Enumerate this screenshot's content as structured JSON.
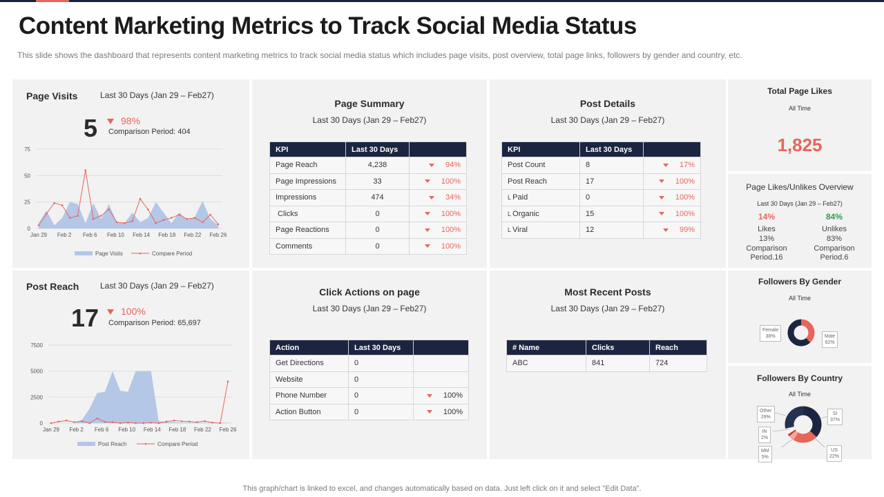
{
  "page": {
    "title": "Content Marketing Metrics to Track Social Media Status",
    "subtitle": "This slide shows the dashboard that represents content marketing metrics to track social media status which includes page visits, post overview,  total page links, followers by gender and country, etc.",
    "footer": "This graph/chart is linked to excel, and changes automatically based on data. Just left click on it and select \"Edit Data\"."
  },
  "colors": {
    "navy": "#1b2540",
    "accent": "#e8655a",
    "area": "#b4c7e7",
    "green": "#2e9e4f",
    "panel": "#f2f2f2"
  },
  "page_visits": {
    "title": "Page Visits",
    "period": "Last 30 Days (Jan 29 – Feb27)",
    "value": "5",
    "change": "98%",
    "comparison": "Comparison Period: 404"
  },
  "post_reach": {
    "title": "Post Reach",
    "period": "Last 30 Days (Jan 29 – Feb27)",
    "value": "17",
    "change": "100%",
    "comparison": "Comparison Period: 65,697"
  },
  "chart_data": [
    {
      "type": "area",
      "ylim": [
        0,
        75
      ],
      "yticks": [
        "0",
        "25",
        "50",
        "75"
      ],
      "xticks": [
        "Jan 29",
        "Feb 2",
        "Feb 6",
        "Feb 10",
        "Feb 14",
        "Feb 18",
        "Feb 22",
        "Feb 26"
      ],
      "series": [
        {
          "name": "Page Visits",
          "values": [
            5,
            17,
            3,
            10,
            25,
            23,
            5,
            24,
            9,
            23,
            6,
            5,
            15,
            6,
            10,
            25,
            15,
            5,
            15,
            8,
            11,
            26,
            9,
            3
          ]
        },
        {
          "name": "Compare Period",
          "values": [
            3,
            14,
            24,
            22,
            10,
            12,
            55,
            9,
            12,
            18,
            6,
            5,
            7,
            28,
            18,
            5,
            8,
            10,
            13,
            9,
            10,
            6,
            13,
            4
          ]
        }
      ]
    },
    {
      "type": "area",
      "ylim": [
        0,
        7500
      ],
      "yticks": [
        "0",
        "2500",
        "5000",
        "7500"
      ],
      "xticks": [
        "Jan 29",
        "Feb 2",
        "Feb 6",
        "Feb 10",
        "Feb 14",
        "Feb 18",
        "Feb 22",
        "Feb 26"
      ],
      "series": [
        {
          "name": "Post Reach",
          "values": [
            0,
            0,
            0,
            0,
            300,
            1400,
            2900,
            3000,
            5000,
            3100,
            3000,
            5000,
            5000,
            5000,
            200,
            100,
            100,
            50,
            50,
            50,
            50,
            50,
            50,
            50
          ]
        },
        {
          "name": "Compare Period",
          "values": [
            0,
            150,
            250,
            100,
            200,
            0,
            450,
            120,
            90,
            0,
            50,
            0,
            0,
            40,
            0,
            150,
            250,
            180,
            150,
            100,
            200,
            50,
            0,
            4000
          ]
        }
      ]
    }
  ],
  "page_summary": {
    "title": "Page Summary",
    "period": "Last 30 Days (Jan 29 – Feb27)",
    "headers": [
      "KPI",
      "Last 30 Days",
      ""
    ],
    "rows": [
      {
        "kpi": "Page Reach",
        "value": "4,238",
        "change": "94%"
      },
      {
        "kpi": "Page Impressions",
        "value": "33",
        "change": "100%"
      },
      {
        "kpi": "Impressions",
        "value": "474",
        "change": "34%"
      },
      {
        "kpi": " Clicks",
        "value": "0",
        "change": "100%"
      },
      {
        "kpi": "Page Reactions",
        "value": "0",
        "change": "100%"
      },
      {
        "kpi": "Comments",
        "value": "0",
        "change": "100%"
      }
    ]
  },
  "post_details": {
    "title": "Post Details",
    "period": "Last 30 Days (Jan 29 – Feb27)",
    "headers": [
      "KPI",
      "Last 30 Days",
      ""
    ],
    "rows": [
      {
        "kpi": "Post Count",
        "value": "8",
        "change": "17%"
      },
      {
        "kpi": "Post Reach",
        "value": "17",
        "change": "100%"
      },
      {
        "kpi": "Paid",
        "value": "0",
        "change": "100%"
      },
      {
        "kpi": "Organic",
        "value": "15",
        "change": "100%"
      },
      {
        "kpi": "Viral",
        "value": "12",
        "change": "99%"
      }
    ]
  },
  "click_actions": {
    "title": "Click Actions on page",
    "period": "Last 30 Days (Jan 29 – Feb27)",
    "headers": [
      "Action",
      "Last 30 Days",
      ""
    ],
    "rows": [
      {
        "action": "Get Directions",
        "value": "0",
        "change": ""
      },
      {
        "action": "Website",
        "value": "0",
        "change": ""
      },
      {
        "action": "Phone Number",
        "value": "0",
        "change": "100%"
      },
      {
        "action": "Action Button",
        "value": "0",
        "change": "100%"
      }
    ]
  },
  "recent_posts": {
    "title": "Most Recent Posts",
    "period": "Last 30 Days (Jan 29 – Feb27)",
    "headers": [
      "# Name",
      "Clicks",
      "Reach"
    ],
    "rows": [
      {
        "name": "ABC",
        "clicks": "841",
        "reach": "724"
      }
    ]
  },
  "total_likes": {
    "title": "Total Page Likes",
    "subtitle": "All Time",
    "value": "1,825"
  },
  "likes_overview": {
    "title": "Page Likes/Unlikes Overview",
    "period": "Last 30 Days (Jan 29 – Feb27)",
    "likes": {
      "pct": "14%",
      "label": "Likes",
      "value": "13%",
      "comparison": "Comparison Period.16"
    },
    "unlikes": {
      "pct": "84%",
      "label": "Unlikes",
      "value": "83%",
      "comparison": "Comparison Period.6"
    }
  },
  "followers_gender": {
    "title": "Followers By Gender",
    "subtitle": "All Time",
    "slices": [
      {
        "name": "Female",
        "value": "38%"
      },
      {
        "name": "Male",
        "value": "62%"
      }
    ]
  },
  "followers_country": {
    "title": "Followers By Country",
    "subtitle": "All Time",
    "slices": [
      {
        "name": "Other",
        "value": "29%"
      },
      {
        "name": "IN",
        "value": "2%"
      },
      {
        "name": "MM",
        "value": "5%"
      },
      {
        "name": "US",
        "value": "22%"
      },
      {
        "name": "SI",
        "value": "37%"
      }
    ]
  }
}
